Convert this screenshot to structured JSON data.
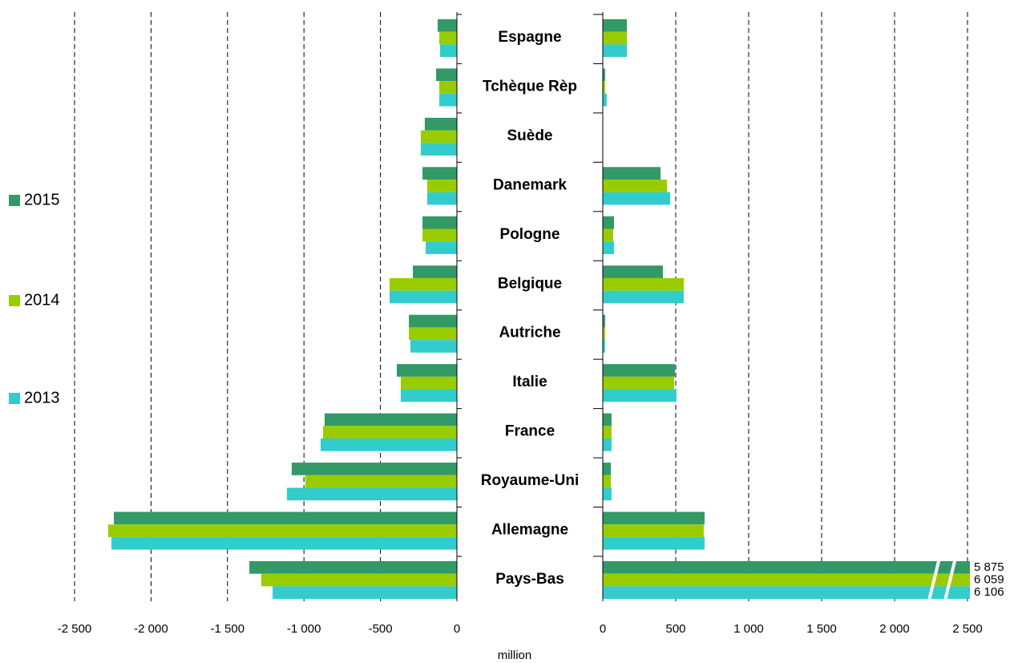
{
  "chart_data": [
    {
      "type": "bar",
      "orientation": "horizontal",
      "categories": [
        "Espagne",
        "Tchèque Rèp",
        "Suède",
        "Danemark",
        "Pologne",
        "Belgique",
        "Autriche",
        "Italie",
        "France",
        "Royaume-Uni",
        "Allemagne",
        "Pays-Bas"
      ],
      "xlabel": "million",
      "series": [
        {
          "name": "2015",
          "color": "#339966",
          "values": [
            -126,
            -136,
            -210,
            -225,
            -225,
            -288,
            -314,
            -393,
            -865,
            -1080,
            -2243,
            -1357
          ]
        },
        {
          "name": "2014",
          "color": "#99cc00",
          "values": [
            -115,
            -115,
            -236,
            -194,
            -225,
            -440,
            -314,
            -367,
            -875,
            -991,
            -2280,
            -1279
          ]
        },
        {
          "name": "2013",
          "color": "#33cccc",
          "values": [
            -110,
            -115,
            -236,
            -194,
            -204,
            -440,
            -304,
            -367,
            -891,
            -1111,
            -2259,
            -1205
          ]
        }
      ],
      "xlim": [
        -2500,
        0
      ],
      "xticks": [
        {
          "value": -2500,
          "label": "-2 500"
        },
        {
          "value": -2000,
          "label": "-2 000"
        },
        {
          "value": -1500,
          "label": "-1 500"
        },
        {
          "value": -1000,
          "label": "-1 000"
        },
        -500,
        0
      ],
      "grid": true
    },
    {
      "type": "bar",
      "orientation": "horizontal",
      "series": [
        {
          "color": "#339966",
          "values": [
            165,
            16,
            0,
            396,
            77,
            412,
            16,
            495,
            60,
            55,
            698,
            5875
          ],
          "value_labels": [
            null,
            null,
            null,
            null,
            null,
            null,
            null,
            null,
            null,
            null,
            null,
            "5 875"
          ]
        },
        {
          "color": "#99cc00",
          "values": [
            165,
            16,
            0,
            440,
            71,
            555,
            16,
            489,
            60,
            55,
            692,
            6059
          ],
          "value_labels": [
            null,
            null,
            null,
            null,
            null,
            null,
            null,
            null,
            null,
            null,
            null,
            "6 059"
          ]
        },
        {
          "color": "#33cccc",
          "values": [
            165,
            27,
            0,
            462,
            77,
            555,
            16,
            505,
            60,
            60,
            698,
            6106
          ],
          "value_labels": [
            null,
            null,
            null,
            null,
            null,
            null,
            null,
            null,
            null,
            null,
            null,
            "6 106"
          ]
        }
      ],
      "xlim": [
        0,
        2500
      ],
      "xticks": [
        0,
        500,
        {
          "value": 1000,
          "label": "1 000"
        },
        {
          "value": 1500,
          "label": "1 500"
        },
        {
          "value": 2000,
          "label": "2 000"
        },
        {
          "value": 2500,
          "label": "2 500"
        }
      ],
      "grid": true
    }
  ]
}
